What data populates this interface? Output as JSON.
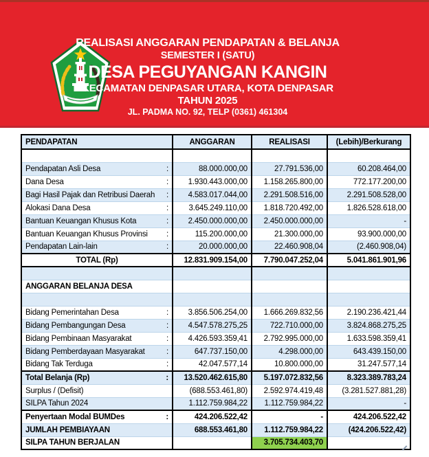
{
  "header": {
    "bg_color": "#E4232B",
    "title_line1": "REALISASI ANGGARAN PENDAPATAN & BELANJA",
    "title_line2": "SEMESTER I  (SATU)",
    "village_name": "DESA PEGUYANGAN KANGIN",
    "district_line": "KECAMATAN DENPASAR UTARA, KOTA DENPASAR",
    "year_line": "TAHUN 2025",
    "address_line": "JL. PADMA NO. 92, TELP (0361) 461304",
    "logo": {
      "name": "village-emblem",
      "shield_color": "#1F9D3F",
      "star_color": "#FFC90B"
    }
  },
  "table": {
    "columns": [
      "PENDAPATAN",
      "ANGGARAN",
      "REALISASI",
      "(Lebih)/Berkurang"
    ],
    "band_color": "#DCEAF7",
    "highlight_color": "#8FD14E",
    "rows": [
      {
        "label": "",
        "colon": "",
        "cells": [
          "",
          "",
          ""
        ],
        "band": false
      },
      {
        "label": "Pendapatan Asli Desa",
        "colon": ":",
        "cells": [
          "88.000.000,00",
          "27.791.536,00",
          "60.208.464,00"
        ],
        "band": true
      },
      {
        "label": "Dana Desa",
        "colon": ":",
        "cells": [
          "1.930.443.000,00",
          "1.158.265.800,00",
          "772.177.200,00"
        ],
        "band": false
      },
      {
        "label": "Bagi Hasil Pajak dan Retribusi Daerah",
        "colon": ":",
        "cells": [
          "4.583.017.044,00",
          "2.291.508.516,00",
          "2.291.508.528,00"
        ],
        "band": true
      },
      {
        "label": "Alokasi Dana Desa",
        "colon": ":",
        "cells": [
          "3.645.249.110,00",
          "1.818.720.492,00",
          "1.826.528.618,00"
        ],
        "band": false
      },
      {
        "label": "Bantuan Keuangan Khusus Kota",
        "colon": ":",
        "cells": [
          "2.450.000.000,00",
          "2.450.000.000,00",
          "-"
        ],
        "band": true
      },
      {
        "label": "Bantuan Keuangan Khusus Provinsi",
        "colon": ":",
        "cells": [
          "115.200.000,00",
          "21.300.000,00",
          "93.900.000,00"
        ],
        "band": false
      },
      {
        "label": "Pendapatan Lain-lain",
        "colon": ":",
        "cells": [
          "20.000.000,00",
          "22.460.908,04",
          "(2.460.908,04)"
        ],
        "band": true
      },
      {
        "label": "TOTAL (Rp)",
        "colon": "",
        "cells": [
          "12.831.909.154,00",
          "7.790.047.252,04",
          "5.041.861.901,96"
        ],
        "band": false,
        "bold": true,
        "center": true,
        "rule_top": true,
        "rule_bottom": true
      },
      {
        "label": "",
        "colon": "",
        "cells": [
          "",
          "",
          ""
        ],
        "band": true
      },
      {
        "label": "ANGGARAN BELANJA DESA",
        "colon": "",
        "cells": [
          "",
          "",
          ""
        ],
        "band": false,
        "bold": true
      },
      {
        "label": "",
        "colon": "",
        "cells": [
          "",
          "",
          ""
        ],
        "band": true
      },
      {
        "label": "Bidang Pemerintahan Desa",
        "colon": ":",
        "cells": [
          "3.856.506.254,00",
          "1.666.269.832,56",
          "2.190.236.421,44"
        ],
        "band": false
      },
      {
        "label": "Bidang Pembangungan Desa",
        "colon": ":",
        "cells": [
          "4.547.578.275,25",
          "722.710.000,00",
          "3.824.868.275,25"
        ],
        "band": true
      },
      {
        "label": "Bidang Pembinaan Masyarakat",
        "colon": ":",
        "cells": [
          "4.426.593.359,41",
          "2.792.995.000,00",
          "1.633.598.359,41"
        ],
        "band": false
      },
      {
        "label": "Bidang Pemberdayaan Masyarakat",
        "colon": ":",
        "cells": [
          "647.737.150,00",
          "4.298.000,00",
          "643.439.150,00"
        ],
        "band": true
      },
      {
        "label": "Bidang Tak Terduga",
        "colon": ":",
        "cells": [
          "42.047.577,14",
          "10.800.000,00",
          "31.247.577,14"
        ],
        "band": false
      },
      {
        "label": "Total Belanja (Rp)",
        "colon": ":",
        "cells": [
          "13.520.462.615,80",
          "5.197.072.832,56",
          "8.323.389.783,24"
        ],
        "band": true,
        "bold": true,
        "rule_top": true
      },
      {
        "label": "Surplus / (Defisit)",
        "colon": "",
        "cells": [
          "(688.553.461,80)",
          "2.592.974.419,48",
          "(3.281.527.881,28)"
        ],
        "band": false
      },
      {
        "label": "SILPA Tahun 2024",
        "colon": "",
        "cells": [
          "1.112.759.984,22",
          "1.112.759.984,22",
          "-"
        ],
        "band": true
      },
      {
        "label": "Penyertaan Modal BUMDes",
        "colon": ":",
        "cells": [
          "424.206.522,42",
          "-",
          "424.206.522,42"
        ],
        "band": false,
        "bold": true,
        "rule_top": true
      },
      {
        "label": "JUMLAH PEMBIAYAAN",
        "colon": "",
        "cells": [
          "688.553.461,80",
          "1.112.759.984,22",
          "(424.206.522,42)"
        ],
        "band": true,
        "bold": true
      },
      {
        "label": "SILPA TAHUN BERJALAN",
        "colon": "",
        "cells": [
          "",
          "3.705.734.403,70",
          ""
        ],
        "band": false,
        "bold": true,
        "rule_bottom": true,
        "highlight": 1
      }
    ]
  }
}
